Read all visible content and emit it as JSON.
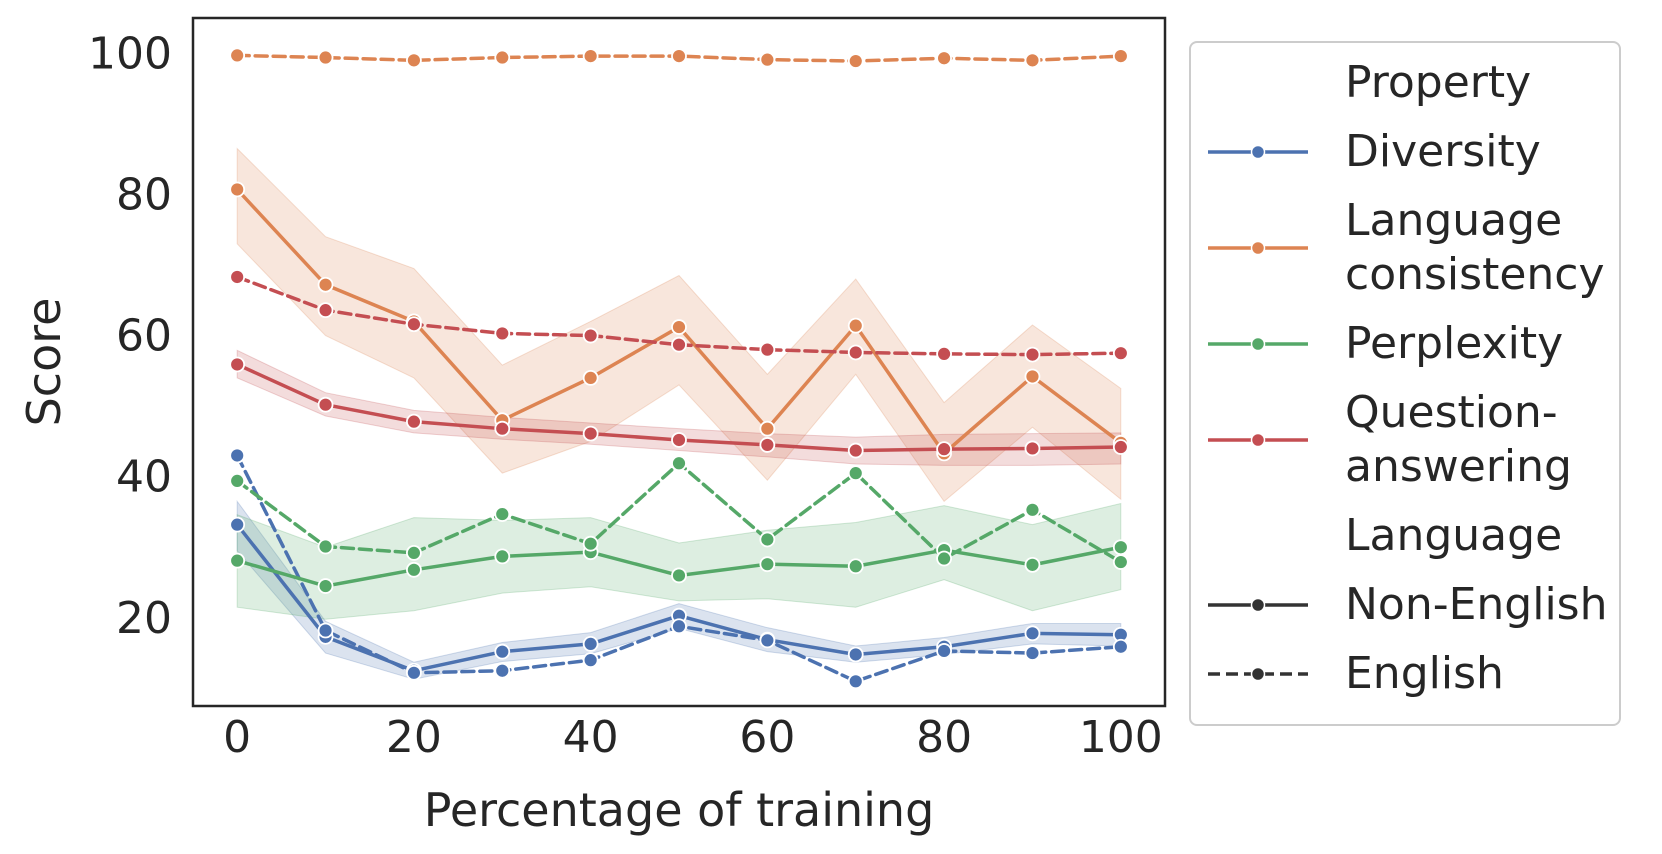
{
  "chart_data": {
    "type": "line",
    "xlabel": "Percentage of training",
    "ylabel": "Score",
    "xlim": [
      -5,
      105
    ],
    "ylim": [
      7.5,
      105
    ],
    "xticks": [
      0,
      20,
      40,
      60,
      80,
      100
    ],
    "yticks": [
      20,
      40,
      60,
      80,
      100
    ],
    "x": [
      0,
      10,
      20,
      30,
      40,
      50,
      60,
      70,
      80,
      90,
      100
    ],
    "series": [
      {
        "name": "Diversity",
        "language": "Non-English",
        "color": "#4c72b0",
        "values": [
          33.2,
          17.3,
          12.5,
          15.2,
          16.3,
          20.3,
          16.9,
          14.8,
          15.9,
          17.8,
          17.6
        ],
        "ci_low": [
          29.5,
          15.0,
          11.3,
          13.8,
          14.9,
          18.5,
          15.2,
          13.7,
          14.8,
          16.3,
          16.0
        ],
        "ci_high": [
          36.5,
          19.5,
          13.7,
          16.5,
          17.9,
          22.0,
          18.6,
          16.0,
          17.2,
          19.2,
          19.2
        ]
      },
      {
        "name": "Diversity",
        "language": "English",
        "color": "#4c72b0",
        "values": [
          43.0,
          18.2,
          12.2,
          12.5,
          14.0,
          18.8,
          16.8,
          11.0,
          15.3,
          15.0,
          15.9
        ]
      },
      {
        "name": "Language consistency",
        "language": "Non-English",
        "color": "#dd8452",
        "values": [
          80.7,
          67.2,
          62.0,
          48.0,
          54.0,
          61.2,
          46.8,
          61.4,
          43.3,
          54.2,
          44.8
        ],
        "ci_low": [
          73.0,
          60.0,
          54.0,
          40.5,
          45.0,
          53.0,
          39.5,
          54.5,
          36.5,
          47.0,
          36.8
        ],
        "ci_high": [
          86.5,
          74.0,
          69.5,
          55.8,
          62.0,
          68.5,
          54.5,
          68.0,
          50.5,
          61.5,
          52.5
        ]
      },
      {
        "name": "Language consistency",
        "language": "English",
        "color": "#dd8452",
        "values": [
          99.7,
          99.4,
          99.0,
          99.4,
          99.6,
          99.6,
          99.1,
          98.9,
          99.3,
          99.0,
          99.6
        ]
      },
      {
        "name": "Perplexity",
        "language": "Non-English",
        "color": "#55a868",
        "values": [
          28.1,
          24.5,
          26.8,
          28.7,
          29.3,
          26.0,
          27.6,
          27.3,
          29.6,
          27.5,
          30.0
        ],
        "ci_low": [
          21.5,
          19.8,
          21.0,
          23.5,
          24.4,
          22.4,
          22.7,
          21.5,
          25.4,
          21.0,
          24.0
        ],
        "ci_high": [
          34.6,
          30.0,
          34.2,
          33.8,
          34.2,
          30.6,
          32.4,
          33.5,
          35.9,
          33.2,
          36.2
        ]
      },
      {
        "name": "Perplexity",
        "language": "English",
        "color": "#55a868",
        "values": [
          39.4,
          30.1,
          29.2,
          34.7,
          30.5,
          41.9,
          31.1,
          40.5,
          28.4,
          35.3,
          27.9
        ]
      },
      {
        "name": "Question-answering",
        "language": "Non-English",
        "color": "#c44e52",
        "values": [
          55.9,
          50.2,
          47.8,
          46.8,
          46.1,
          45.2,
          44.5,
          43.7,
          43.9,
          44.0,
          44.2
        ],
        "ci_low": [
          54.0,
          48.6,
          46.2,
          45.3,
          44.6,
          43.7,
          42.8,
          41.8,
          41.6,
          41.6,
          41.8
        ],
        "ci_high": [
          57.9,
          51.9,
          49.4,
          48.4,
          47.6,
          46.8,
          46.1,
          45.6,
          46.0,
          46.1,
          46.2
        ]
      },
      {
        "name": "Question-answering",
        "language": "English",
        "color": "#c44e52",
        "values": [
          68.3,
          63.6,
          61.6,
          60.3,
          60.0,
          58.7,
          58.0,
          57.6,
          57.4,
          57.3,
          57.5
        ]
      }
    ],
    "legend": {
      "placement": "outside-right",
      "sections": [
        {
          "title": "Property",
          "entries": [
            {
              "label": [
                "Diversity"
              ],
              "color": "#4c72b0"
            },
            {
              "label": [
                "Language",
                "consistency"
              ],
              "color": "#dd8452"
            },
            {
              "label": [
                "Perplexity"
              ],
              "color": "#55a868"
            },
            {
              "label": [
                "Question-",
                "answering"
              ],
              "color": "#c44e52"
            }
          ]
        },
        {
          "title": "Language",
          "entries": [
            {
              "label": [
                "Non-English"
              ],
              "color": "#333333",
              "style": "solid"
            },
            {
              "label": [
                "English"
              ],
              "color": "#333333",
              "style": "dashed"
            }
          ]
        }
      ]
    }
  }
}
